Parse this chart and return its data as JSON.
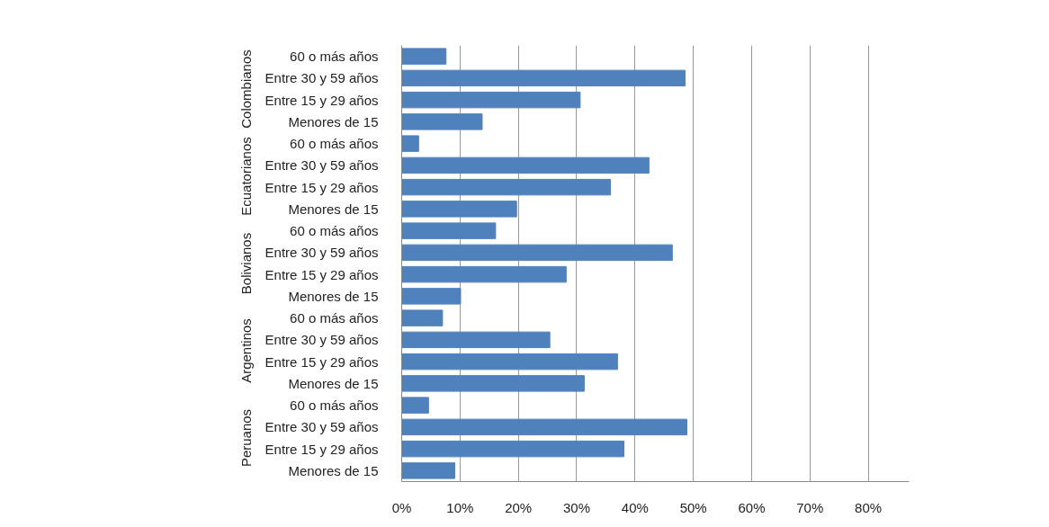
{
  "chart_data": {
    "type": "bar",
    "orientation": "horizontal",
    "categories": [
      "60 o más años",
      "Entre 30 y 59 años",
      "Entre 15 y 29 años",
      "Menores de 15",
      "60 o más años",
      "Entre 30 y 59 años",
      "Entre 15 y 29 años",
      "Menores de 15",
      "60 o más años",
      "Entre 30 y 59 años",
      "Entre 15 y 29 años",
      "Menores de 15",
      "60 o más años",
      "Entre 30 y 59 años",
      "Entre 15 y 29 años",
      "Menores de 15",
      "60 o más años",
      "Entre 30 y 59 años",
      "Entre 15 y 29 años",
      "Menores de 15"
    ],
    "values": [
      7.6,
      48.6,
      30.6,
      13.8,
      2.9,
      42.4,
      35.8,
      19.7,
      16.1,
      46.4,
      28.2,
      10.1,
      7.0,
      25.4,
      37.0,
      31.3,
      4.6,
      48.9,
      38.1,
      9.1
    ],
    "color": "#4f81bd",
    "annotations": [
      "Colombianos",
      "Ecuatorianos",
      "Bolivianos",
      "Argentinos",
      "Peruanos"
    ],
    "xlim": [
      0,
      87
    ],
    "xticks": [
      {
        "value": 0,
        "label": "0%"
      },
      {
        "value": 10,
        "label": "10%"
      },
      {
        "value": 20,
        "label": "20%"
      },
      {
        "value": 30,
        "label": "30%"
      },
      {
        "value": 40,
        "label": "40%"
      },
      {
        "value": 50,
        "label": "50%"
      },
      {
        "value": 60,
        "label": "60%"
      },
      {
        "value": 70,
        "label": "70%"
      },
      {
        "value": 80,
        "label": "80%"
      }
    ],
    "grid": "x"
  }
}
